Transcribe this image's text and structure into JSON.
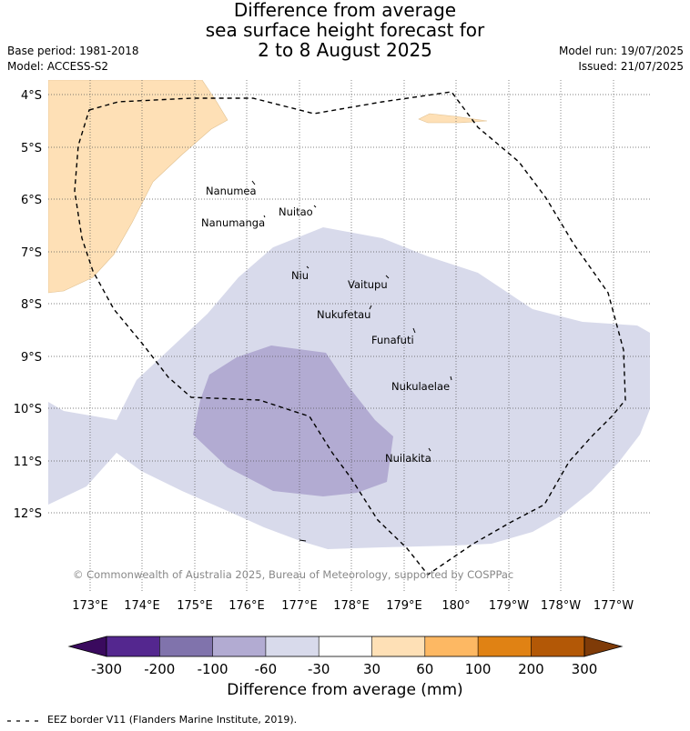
{
  "title": {
    "line1": "Difference from average",
    "line2": "sea surface height forecast for",
    "line3": "2 to 8 August 2025"
  },
  "meta_left": {
    "base_period": "Base period: 1981-2018",
    "model": "Model: ACCESS-S2"
  },
  "meta_right": {
    "model_run": "Model run: 19/07/2025",
    "issued": "Issued: 21/07/2025"
  },
  "copyright": "© Commonwealth of Australia 2025, Bureau of Meteorology, supported by COSPPac",
  "lat_labels": [
    "4°S",
    "5°S",
    "6°S",
    "7°S",
    "8°S",
    "9°S",
    "10°S",
    "11°S",
    "12°S"
  ],
  "lon_labels": [
    "173°E",
    "174°E",
    "175°E",
    "176°E",
    "177°E",
    "178°E",
    "179°E",
    "180°",
    "179°W",
    "178°W",
    "177°W"
  ],
  "islands": [
    {
      "name": "Nanumea"
    },
    {
      "name": "Nuitao"
    },
    {
      "name": "Nanumanga"
    },
    {
      "name": "Niu"
    },
    {
      "name": "Vaitupu"
    },
    {
      "name": "Nukufetau"
    },
    {
      "name": "Funafuti"
    },
    {
      "name": "Nukulaelae"
    },
    {
      "name": "Nuilakita"
    }
  ],
  "colorbar": {
    "ticks": [
      "-300",
      "-200",
      "-100",
      "-60",
      "-30",
      "30",
      "60",
      "100",
      "200",
      "300"
    ],
    "colors": [
      "#3a0a5e",
      "#54278f",
      "#8073ac",
      "#b2abd2",
      "#d8daeb",
      "#ffffff",
      "#fee0b6",
      "#fdb863",
      "#e08214",
      "#b35806",
      "#7f3b08"
    ],
    "label": "Difference from average (mm)"
  },
  "legend_footer": "EEZ border V11 (Flanders Marine Institute, 2019)."
}
